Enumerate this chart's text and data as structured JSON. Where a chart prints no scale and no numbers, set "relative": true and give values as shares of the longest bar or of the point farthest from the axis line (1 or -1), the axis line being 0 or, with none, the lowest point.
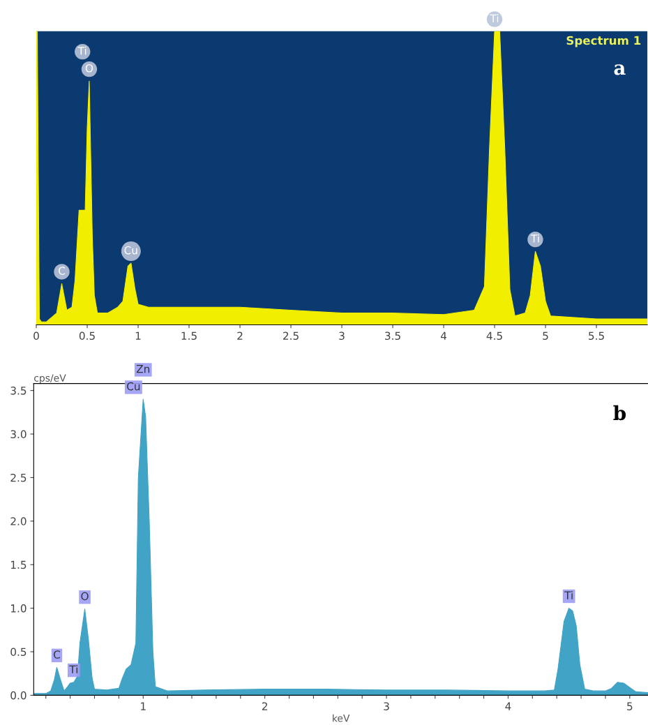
{
  "chart_data": [
    {
      "type": "area",
      "relative": true,
      "tick_labels": "x",
      "grid": false,
      "legend": false,
      "xlim": [
        0,
        6.0
      ],
      "xticks": [
        {
          "value": 0,
          "label": "0"
        },
        0.5,
        1,
        1.5,
        2,
        2.5,
        3,
        3.5,
        4,
        4.5,
        5,
        5.5
      ],
      "series": [
        {
          "color": "#f2ee00",
          "x": [
            0.0,
            0.01,
            0.03,
            0.05,
            0.1,
            0.2,
            0.25,
            0.3,
            0.35,
            0.38,
            0.42,
            0.45,
            0.48,
            0.5,
            0.52,
            0.55,
            0.57,
            0.6,
            0.7,
            0.8,
            0.85,
            0.9,
            0.93,
            0.97,
            1.0,
            1.1,
            1.5,
            2.0,
            2.5,
            3.0,
            3.5,
            4.0,
            4.3,
            4.4,
            4.45,
            4.5,
            4.55,
            4.6,
            4.65,
            4.7,
            4.8,
            4.85,
            4.9,
            4.95,
            5.0,
            5.05,
            5.5,
            6.0
          ],
          "values": [
            1.0,
            1.0,
            0.02,
            0.01,
            0.01,
            0.04,
            0.14,
            0.05,
            0.06,
            0.15,
            0.39,
            0.39,
            0.39,
            0.67,
            0.83,
            0.3,
            0.1,
            0.04,
            0.04,
            0.06,
            0.08,
            0.2,
            0.21,
            0.12,
            0.07,
            0.06,
            0.06,
            0.06,
            0.05,
            0.04,
            0.04,
            0.035,
            0.05,
            0.13,
            0.6,
            1.0,
            1.0,
            0.6,
            0.12,
            0.03,
            0.04,
            0.1,
            0.25,
            0.2,
            0.08,
            0.03,
            0.02,
            0.02
          ]
        }
      ],
      "annotations": [
        "Spectrum 1",
        "a",
        {
          "text": "Ti",
          "x": 0.52,
          "y": 0.83
        },
        {
          "text": "O",
          "x": 0.52,
          "y": 0.83
        },
        {
          "text": "C",
          "x": 0.25,
          "y": 0.14
        },
        {
          "text": "Cu",
          "x": 0.93,
          "y": 0.21
        },
        {
          "text": "Ti",
          "x": 4.5,
          "y": 1.0
        },
        {
          "text": "Ti",
          "x": 4.9,
          "y": 0.25
        }
      ]
    },
    {
      "type": "area",
      "ylabel": "cps/eV",
      "xlabel": "keV",
      "grid": false,
      "legend": false,
      "xlim": [
        0.1,
        5.15
      ],
      "ylim": [
        0,
        3.58
      ],
      "xticks": [
        {
          "value": 0.2,
          "label": null
        },
        {
          "value": 0.4,
          "label": null
        },
        {
          "value": 0.6,
          "label": null
        },
        {
          "value": 0.8,
          "label": null
        },
        1,
        {
          "value": 1.2,
          "label": null
        },
        {
          "value": 1.4,
          "label": null
        },
        {
          "value": 1.6,
          "label": null
        },
        {
          "value": 1.8,
          "label": null
        },
        2,
        {
          "value": 2.2,
          "label": null
        },
        {
          "value": 2.4,
          "label": null
        },
        {
          "value": 2.6,
          "label": null
        },
        {
          "value": 2.8,
          "label": null
        },
        3,
        {
          "value": 3.2,
          "label": null
        },
        {
          "value": 3.4,
          "label": null
        },
        {
          "value": 3.6,
          "label": null
        },
        {
          "value": 3.8,
          "label": null
        },
        4,
        {
          "value": 4.2,
          "label": null
        },
        {
          "value": 4.4,
          "label": null
        },
        {
          "value": 4.6,
          "label": null
        },
        {
          "value": 4.8,
          "label": null
        },
        5
      ],
      "yticks": [
        {
          "value": 0,
          "label": "0.0"
        },
        {
          "value": 0.5,
          "label": "0.5"
        },
        {
          "value": 1,
          "label": "1.0"
        },
        {
          "value": 1.5,
          "label": "1.5"
        },
        {
          "value": 2,
          "label": "2.0"
        },
        {
          "value": 2.5,
          "label": "2.5"
        },
        {
          "value": 3,
          "label": "3.0"
        },
        {
          "value": 3.5,
          "label": "3.5"
        }
      ],
      "series": [
        {
          "color": "#41a3c6",
          "x": [
            0.1,
            0.2,
            0.24,
            0.27,
            0.29,
            0.32,
            0.35,
            0.38,
            0.4,
            0.43,
            0.46,
            0.48,
            0.52,
            0.55,
            0.58,
            0.6,
            0.7,
            0.8,
            0.83,
            0.86,
            0.9,
            0.94,
            0.96,
            1.0,
            1.02,
            1.05,
            1.08,
            1.1,
            1.2,
            1.5,
            2.0,
            2.5,
            3.0,
            3.5,
            4.0,
            4.3,
            4.38,
            4.41,
            4.46,
            4.5,
            4.53,
            4.56,
            4.59,
            4.63,
            4.7,
            4.8,
            4.85,
            4.9,
            4.95,
            5.0,
            5.05,
            5.15
          ],
          "values": [
            0.02,
            0.02,
            0.05,
            0.18,
            0.32,
            0.18,
            0.05,
            0.1,
            0.14,
            0.15,
            0.22,
            0.6,
            0.99,
            0.64,
            0.2,
            0.07,
            0.06,
            0.08,
            0.2,
            0.3,
            0.35,
            0.6,
            2.5,
            3.4,
            3.2,
            2.0,
            0.5,
            0.1,
            0.05,
            0.06,
            0.07,
            0.07,
            0.06,
            0.06,
            0.05,
            0.05,
            0.06,
            0.3,
            0.85,
            1.0,
            0.97,
            0.8,
            0.35,
            0.07,
            0.05,
            0.05,
            0.08,
            0.15,
            0.14,
            0.09,
            0.04,
            0.03
          ]
        }
      ],
      "annotations": [
        "b",
        {
          "text": "Zn",
          "x": 1.0,
          "y": 3.4
        },
        {
          "text": "Cu",
          "x": 1.0,
          "y": 3.4
        },
        {
          "text": "O",
          "x": 0.52,
          "y": 0.99
        },
        {
          "text": "C",
          "x": 0.29,
          "y": 0.32
        },
        {
          "text": "Ti",
          "x": 0.43,
          "y": 0.15
        },
        {
          "text": "Ti",
          "x": 4.5,
          "y": 1.0
        }
      ]
    }
  ]
}
